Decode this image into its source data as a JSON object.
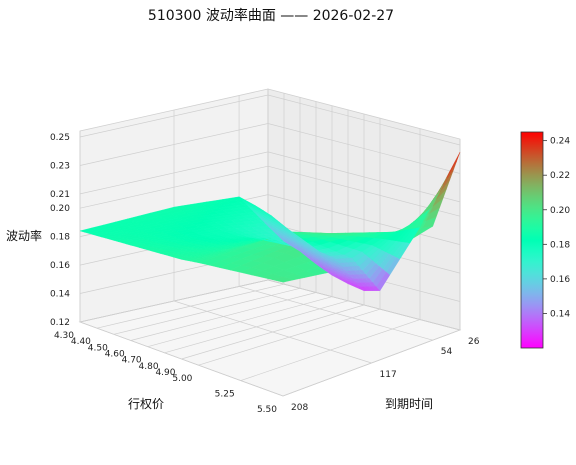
{
  "chart_data": {
    "type": "surface3d",
    "title": "510300 波动率曲面 —— 2026-02-27",
    "xlabel": "行权价",
    "ylabel": "到期时间",
    "zlabel": "波动率",
    "strike_ticks": [
      "4.30",
      "4.40",
      "4.50",
      "4.60",
      "4.70",
      "4.80",
      "4.90",
      "5.00",
      "5.25",
      "5.50"
    ],
    "expiry_ticks": [
      "26",
      "54",
      "117",
      "208"
    ],
    "z_ticks": [
      "0.12",
      "0.14",
      "0.16",
      "0.18",
      "0.20",
      "0.21",
      "0.23",
      "0.25"
    ],
    "colorbar_ticks": [
      "0.24",
      "0.22",
      "0.20",
      "0.18",
      "0.16",
      "0.14"
    ],
    "zlim": [
      0.12,
      0.25
    ],
    "colorbar_range": [
      0.12,
      0.245
    ],
    "colormap": "rainbow",
    "strikes": [
      4.3,
      4.4,
      4.5,
      4.6,
      4.7,
      4.8,
      4.9,
      5.0,
      5.25,
      5.5
    ],
    "expiries": [
      26,
      54,
      117,
      208
    ],
    "values": [
      [
        0.158,
        0.183,
        0.186,
        0.184
      ],
      [
        0.15,
        0.18,
        0.184,
        0.185
      ],
      [
        0.146,
        0.176,
        0.182,
        0.186
      ],
      [
        0.14,
        0.17,
        0.18,
        0.187
      ],
      [
        0.135,
        0.165,
        0.18,
        0.188
      ],
      [
        0.132,
        0.16,
        0.182,
        0.189
      ],
      [
        0.13,
        0.158,
        0.186,
        0.19
      ],
      [
        0.133,
        0.162,
        0.194,
        0.192
      ],
      [
        0.185,
        0.188,
        0.202,
        0.196
      ],
      [
        0.245,
        0.2,
        0.19,
        0.2
      ]
    ]
  }
}
